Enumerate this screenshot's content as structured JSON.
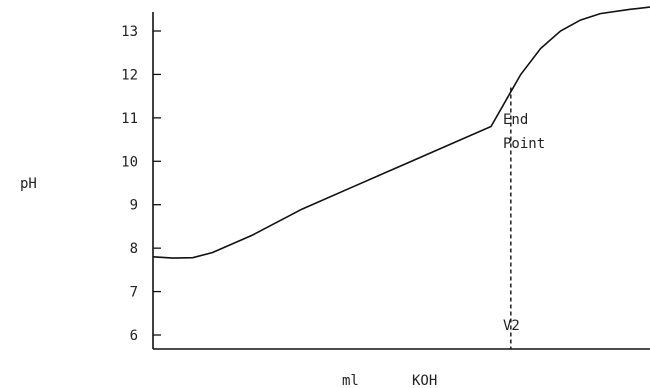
{
  "chart_data": {
    "type": "line",
    "title": "",
    "ylabel": "pH",
    "xlabel": "ml",
    "xlabel_unit": "KOH",
    "y_ticks": [
      6,
      7,
      8,
      9,
      10,
      11,
      12,
      13
    ],
    "ylim": [
      5.8,
      13.6
    ],
    "xlim": [
      0,
      100
    ],
    "grid": false,
    "series": [
      {
        "x": [
          0,
          4,
          8,
          12,
          20,
          30,
          40,
          50,
          60,
          68,
          72,
          74,
          78,
          82,
          86,
          90,
          96,
          100
        ],
        "values": [
          7.8,
          7.77,
          7.78,
          7.9,
          8.3,
          8.9,
          9.4,
          9.9,
          10.4,
          10.8,
          11.6,
          12.0,
          12.6,
          13.0,
          13.25,
          13.4,
          13.5,
          13.55
        ]
      }
    ],
    "annotations": {
      "end_point_line1": "End",
      "end_point_line2": "Point",
      "v2": "V2"
    },
    "end_point_x": 72,
    "end_point_ph": 11.7
  }
}
